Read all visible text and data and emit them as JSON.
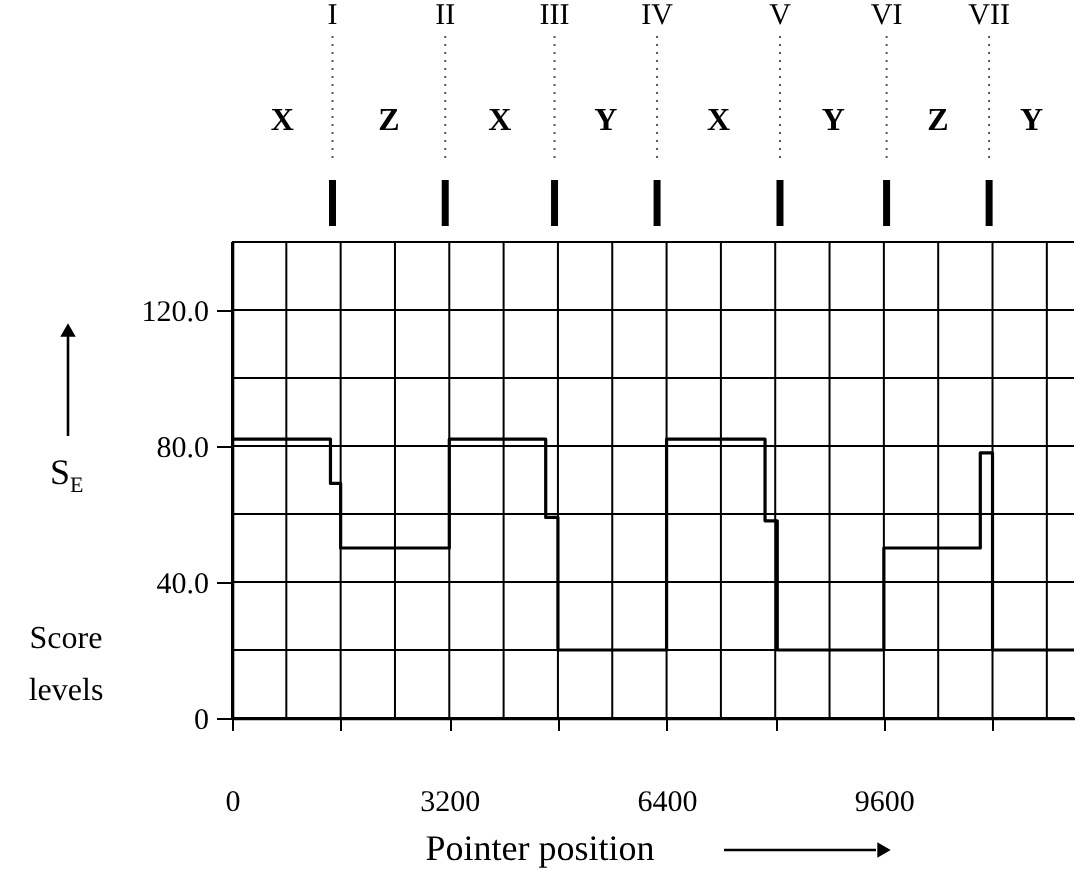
{
  "chart_data": {
    "type": "step",
    "xlabel": "Pointer position",
    "ylabel": "S$_{E}$",
    "x": [
      0,
      1450,
      1600,
      3200,
      4620,
      4800,
      6400,
      7850,
      8030,
      9600,
      11020,
      11200,
      12400
    ],
    "series": [
      {
        "color": "#000000",
        "values": [
          82,
          69,
          50,
          82,
          59,
          20,
          82,
          58,
          20,
          50,
          78,
          20,
          20
        ]
      }
    ],
    "xlim": [
      0,
      12400
    ],
    "ylim": [
      0,
      140
    ],
    "xticks": [
      0,
      {
        "value": 800,
        "label": null
      },
      {
        "value": 1600,
        "label": null
      },
      {
        "value": 2400,
        "label": null
      },
      3200,
      {
        "value": 4000,
        "label": null
      },
      {
        "value": 4800,
        "label": null
      },
      {
        "value": 5600,
        "label": null
      },
      6400,
      {
        "value": 7200,
        "label": null
      },
      {
        "value": 8000,
        "label": null
      },
      {
        "value": 8800,
        "label": null
      },
      9600,
      {
        "value": 10400,
        "label": null
      },
      {
        "value": 11200,
        "label": null
      },
      {
        "value": 12000,
        "label": null
      }
    ],
    "yticks": [
      0,
      {
        "value": 20,
        "label": null
      },
      {
        "value": 40,
        "label": "40.0"
      },
      {
        "value": 60,
        "label": null
      },
      {
        "value": 80,
        "label": "80.0"
      },
      {
        "value": 100,
        "label": null
      },
      {
        "value": 120,
        "label": "120.0"
      },
      {
        "value": 140,
        "label": null
      }
    ],
    "grid": true,
    "marker": "none",
    "line_style": "solid",
    "ref_lines": [
      {
        "axis": "x",
        "value": 1480,
        "label": "I",
        "line_style": "dotted"
      },
      {
        "axis": "x",
        "value": 3140,
        "label": "II",
        "line_style": "dotted"
      },
      {
        "axis": "x",
        "value": 4750,
        "label": "III",
        "line_style": "dotted"
      },
      {
        "axis": "x",
        "value": 6260,
        "label": "IV",
        "line_style": "dotted"
      },
      {
        "axis": "x",
        "value": 8070,
        "label": "V",
        "line_style": "dotted"
      },
      {
        "axis": "x",
        "value": 9640,
        "label": "VI",
        "line_style": "dotted"
      },
      {
        "axis": "x",
        "value": 11150,
        "label": "VII",
        "line_style": "dotted"
      }
    ],
    "annotations": [
      "X",
      "Z",
      "X",
      "Y",
      "X",
      "Y",
      "Z",
      "Y",
      "Score levels"
    ]
  }
}
